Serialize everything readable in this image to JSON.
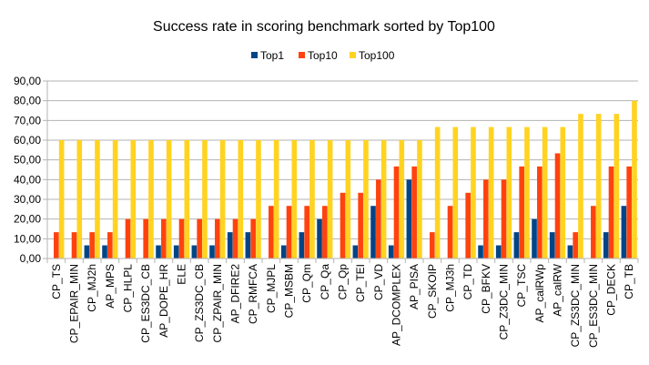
{
  "chart_data": {
    "type": "bar",
    "title": "Success rate in scoring benchmark sorted by Top100",
    "xlabel": "",
    "ylabel": "",
    "ylim": [
      0,
      90
    ],
    "yticks": [
      "0,00",
      "10,00",
      "20,00",
      "30,00",
      "40,00",
      "50,00",
      "60,00",
      "70,00",
      "80,00",
      "90,00"
    ],
    "grid": true,
    "legend_position": "top",
    "categories": [
      "CP_TS",
      "CP_EPAIR_MIN",
      "CP_MJ2h",
      "AP_MPS",
      "CP_HLPL",
      "CP_ES3DC_CB",
      "AP_DOPE_HR",
      "ELE",
      "CP_ZS3DC_CB",
      "CP_ZPAIR_MIN",
      "AP_DFIRE2",
      "CP_RMFCA",
      "CP_MJPL",
      "CP_MSBM",
      "CP_Qm",
      "CP_Qa",
      "CP_Qp",
      "CP_TEI",
      "CP_VD",
      "AP_DCOMPLEX",
      "AP_PISA",
      "CP_SKOIP",
      "CP_MJ3h",
      "CP_TD",
      "CP_BFKV",
      "CP_Z3DC_MIN",
      "CP_TSC",
      "AP_calRWp",
      "AP_calRW",
      "CP_ZS3DC_MIN",
      "CP_ES3DC_MIN",
      "CP_DECK",
      "CP_TB"
    ],
    "series": [
      {
        "name": "Top1",
        "color": "#004586",
        "values": [
          0,
          0,
          6.67,
          6.67,
          0,
          0,
          6.67,
          6.67,
          6.67,
          6.67,
          13.33,
          13.33,
          0,
          6.67,
          13.33,
          20,
          0,
          6.67,
          26.67,
          6.67,
          40,
          0,
          0,
          0,
          6.67,
          6.67,
          13.33,
          20,
          13.33,
          6.67,
          0,
          13.33,
          26.67
        ]
      },
      {
        "name": "Top10",
        "color": "#ff420e",
        "values": [
          13.33,
          13.33,
          13.33,
          13.33,
          20,
          20,
          20,
          20,
          20,
          20,
          20,
          20,
          26.67,
          26.67,
          26.67,
          26.67,
          33.33,
          33.33,
          40,
          46.67,
          46.67,
          13.33,
          26.67,
          33.33,
          40,
          40,
          46.67,
          46.67,
          53.33,
          13.33,
          26.67,
          46.67,
          46.67
        ]
      },
      {
        "name": "Top100",
        "color": "#ffd320",
        "values": [
          60,
          60,
          60,
          60,
          60,
          60,
          60,
          60,
          60,
          60,
          60,
          60,
          60,
          60,
          60,
          60,
          60,
          60,
          60,
          60,
          60,
          66.67,
          66.67,
          66.67,
          66.67,
          66.67,
          66.67,
          66.67,
          66.67,
          73.33,
          73.33,
          73.33,
          80
        ]
      }
    ]
  }
}
